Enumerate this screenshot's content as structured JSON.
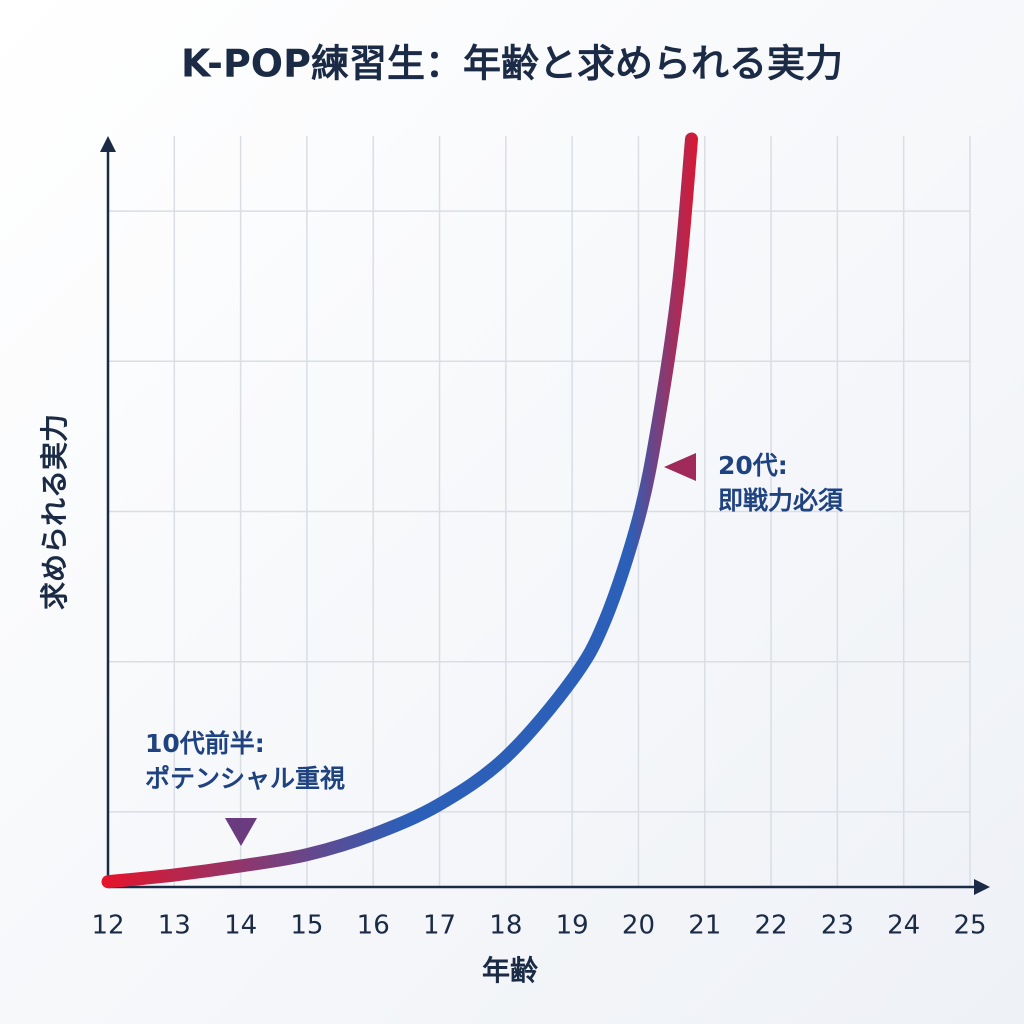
{
  "chart_data": {
    "type": "line",
    "title": "K-POP練習生：年齢と求められる実力",
    "x_label": "年齢",
    "y_label": "求められる実力",
    "x": [
      12,
      13,
      14,
      15,
      16,
      17,
      18,
      19,
      19.5,
      20,
      20.3,
      20.6,
      20.8
    ],
    "values": [
      0.07,
      0.16,
      0.28,
      0.43,
      0.7,
      1.1,
      1.73,
      2.76,
      3.56,
      4.9,
      6.2,
      8.0,
      9.96
    ],
    "colors": [
      "#e3142c",
      "#2c5fb8"
    ],
    "xlim": [
      12,
      25
    ],
    "xticks": [
      12,
      13,
      14,
      15,
      16,
      17,
      18,
      19,
      20,
      21,
      22,
      23,
      24,
      25
    ],
    "ylim": [
      0,
      10
    ],
    "yticks": [
      1,
      3,
      5,
      7,
      9
    ],
    "ytick_labels": false,
    "grid": true,
    "annotations": [
      {
        "lines": [
          "10代前半:",
          "ポテンシャル重視"
        ]
      },
      {
        "lines": [
          "20代:",
          "即戦力必須"
        ]
      }
    ]
  }
}
